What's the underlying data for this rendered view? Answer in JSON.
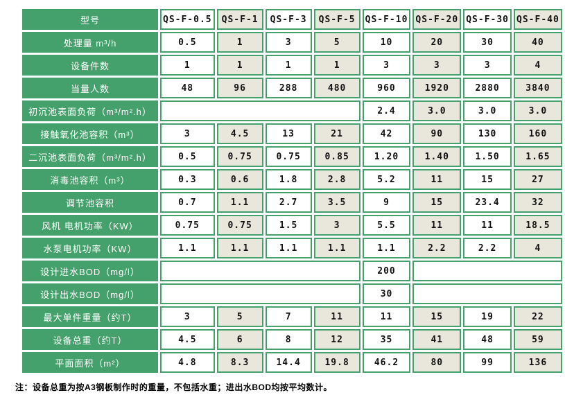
{
  "colors": {
    "green": "#44a16c",
    "beige": "#e9e7dc",
    "cell_white": "#ffffff",
    "text_dark": "#111111"
  },
  "table": {
    "rows": [
      {
        "label": "型号",
        "cells": [
          "QS-F-0.5",
          "QS-F-1",
          "QS-F-3",
          "QS-F-5",
          "QS-F-10",
          "QS-F-20",
          "QS-F-30",
          "QS-F-40"
        ]
      },
      {
        "label": "处理量 m³/h",
        "cells": [
          "0.5",
          "1",
          "3",
          "5",
          "10",
          "20",
          "30",
          "40"
        ]
      },
      {
        "label": "设备件数",
        "cells": [
          "1",
          "1",
          "1",
          "1",
          "3",
          "3",
          "3",
          "4"
        ]
      },
      {
        "label": "当量人数",
        "cells": [
          "48",
          "96",
          "288",
          "480",
          "960",
          "1920",
          "2880",
          "3840"
        ]
      },
      {
        "label": "初沉池表面负荷（m³/m².h）",
        "cells": [
          {
            "text": "",
            "span": 4
          },
          "2.4",
          "3.0",
          "3.0",
          "3.0"
        ]
      },
      {
        "label": "接触氧化池容积（m³）",
        "cells": [
          "3",
          "4.5",
          "13",
          "21",
          "42",
          "90",
          "130",
          "160"
        ]
      },
      {
        "label": "二沉池表面负荷（m³/m².h）",
        "cells": [
          "0.5",
          "0.75",
          "0.75",
          "0.85",
          "1.20",
          "1.40",
          "1.50",
          "1.65"
        ]
      },
      {
        "label": "消毒池容积（m³）",
        "cells": [
          "0.3",
          "0.6",
          "1.8",
          "2.8",
          "5.2",
          "11",
          "15",
          "27"
        ]
      },
      {
        "label": "调节池容积",
        "cells": [
          "0.7",
          "1.1",
          "2.7",
          "3.5",
          "9",
          "15",
          "23.4",
          "32"
        ]
      },
      {
        "label": "风机 电机功率（KW）",
        "cells": [
          "0.75",
          "0.75",
          "1.5",
          "3",
          "5.5",
          "11",
          "11",
          "18.5"
        ]
      },
      {
        "label": "水泵电机功率（KW）",
        "cells": [
          "1.1",
          "1.1",
          "1.1",
          "1.1",
          "1.1",
          "2.2",
          "2.2",
          "4"
        ]
      },
      {
        "label": "设计进水BOD（mg/l）",
        "cells": [
          {
            "text": "",
            "span": 4
          },
          "200",
          {
            "text": "",
            "span": 3
          }
        ]
      },
      {
        "label": "设计出水BOD（mg/l）",
        "cells": [
          {
            "text": "",
            "span": 4
          },
          "30",
          {
            "text": "",
            "span": 3
          }
        ]
      },
      {
        "label": "最大单件重量（约T）",
        "cells": [
          "3",
          "5",
          "7",
          "11",
          "11",
          "15",
          "19",
          "22"
        ]
      },
      {
        "label": "设备总重（约T）",
        "cells": [
          "4.5",
          "6",
          "8",
          "12",
          "35",
          "41",
          "48",
          "59"
        ]
      },
      {
        "label": "平面面积（m²）",
        "cells": [
          "4.8",
          "8.3",
          "14.4",
          "19.8",
          "46.2",
          "80",
          "99",
          "136"
        ]
      }
    ]
  },
  "note": "注：设备总重为按A3钢板制作时的重量，不包括水重；进出水BOD均按平均数计。"
}
